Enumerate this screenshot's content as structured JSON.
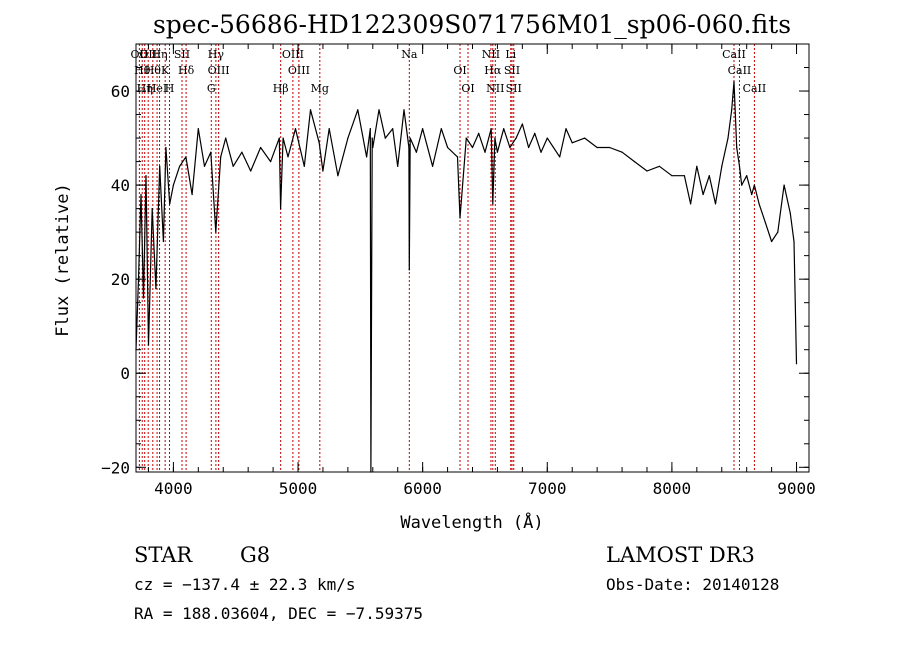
{
  "chart_data": {
    "type": "line",
    "title": "spec-56686-HD122309S071756M01_sp06-060.fits",
    "xlabel": "Wavelength (Å)",
    "ylabel": "Flux (relative)",
    "xlim": [
      3700,
      9100
    ],
    "ylim": [
      -21,
      70
    ],
    "xticks": [
      4000,
      5000,
      6000,
      7000,
      8000,
      9000
    ],
    "yticks": [
      -20,
      0,
      20,
      40,
      60
    ],
    "grid": false,
    "series": [
      {
        "name": "flux",
        "x": [
          3700,
          3720,
          3740,
          3760,
          3780,
          3800,
          3830,
          3860,
          3890,
          3920,
          3940,
          3970,
          4000,
          4050,
          4100,
          4150,
          4200,
          4250,
          4300,
          4340,
          4380,
          4420,
          4480,
          4550,
          4620,
          4700,
          4780,
          4850,
          4860,
          4880,
          4920,
          4980,
          5050,
          5100,
          5170,
          5200,
          5250,
          5320,
          5400,
          5480,
          5550,
          5580,
          5585,
          5595,
          5600,
          5650,
          5700,
          5760,
          5800,
          5850,
          5890,
          5893,
          5900,
          5950,
          6000,
          6080,
          6150,
          6200,
          6280,
          6300,
          6350,
          6400,
          6450,
          6500,
          6550,
          6563,
          6580,
          6600,
          6650,
          6700,
          6750,
          6800,
          6850,
          6900,
          6950,
          7000,
          7050,
          7100,
          7150,
          7200,
          7300,
          7400,
          7500,
          7600,
          7700,
          7800,
          7900,
          8000,
          8100,
          8150,
          8200,
          8250,
          8300,
          8350,
          8400,
          8450,
          8480,
          8498,
          8520,
          8542,
          8560,
          8600,
          8640,
          8662,
          8700,
          8750,
          8800,
          8850,
          8900,
          8950,
          8980,
          9000
        ],
        "values": [
          5,
          20,
          38,
          16,
          42,
          6,
          35,
          18,
          44,
          28,
          48,
          36,
          40,
          44,
          46,
          38,
          52,
          44,
          47,
          30,
          46,
          50,
          44,
          47,
          43,
          48,
          45,
          50,
          35,
          50,
          46,
          52,
          44,
          56,
          49,
          43,
          52,
          42,
          50,
          56,
          46,
          52,
          -21,
          50,
          48,
          56,
          50,
          52,
          44,
          56,
          48,
          22,
          50,
          47,
          52,
          44,
          52,
          48,
          46,
          33,
          50,
          48,
          51,
          47,
          52,
          36,
          50,
          47,
          52,
          48,
          50,
          53,
          48,
          51,
          47,
          50,
          48,
          46,
          52,
          49,
          50,
          48,
          48,
          47,
          45,
          43,
          44,
          42,
          42,
          36,
          44,
          38,
          42,
          36,
          44,
          50,
          56,
          62,
          48,
          44,
          40,
          42,
          38,
          40,
          36,
          32,
          28,
          30,
          40,
          34,
          28,
          2
        ]
      }
    ],
    "line_markers": [
      {
        "lambda": 3727,
        "label": "OII"
      },
      {
        "lambda": 3750,
        "label": "Hθ"
      },
      {
        "lambda": 3770,
        "label": "Hη"
      },
      {
        "lambda": 3798,
        "label": "OII"
      },
      {
        "lambda": 3835,
        "label": "Hθ"
      },
      {
        "lambda": 3869,
        "label": "HeI"
      },
      {
        "lambda": 3889,
        "label": "Hη"
      },
      {
        "lambda": 3934,
        "label": "K"
      },
      {
        "lambda": 3969,
        "label": "H"
      },
      {
        "lambda": 4069,
        "label": "SII"
      },
      {
        "lambda": 4102,
        "label": "Hδ"
      },
      {
        "lambda": 4304,
        "label": "G"
      },
      {
        "lambda": 4341,
        "label": "Hγ"
      },
      {
        "lambda": 4363,
        "label": "OIII"
      },
      {
        "lambda": 4861,
        "label": "Hβ"
      },
      {
        "lambda": 4959,
        "label": "OIII"
      },
      {
        "lambda": 5007,
        "label": "OIII"
      },
      {
        "lambda": 5175,
        "label": "Mg"
      },
      {
        "lambda": 5893,
        "label": "Na"
      },
      {
        "lambda": 6300,
        "label": "OI"
      },
      {
        "lambda": 6364,
        "label": "OI"
      },
      {
        "lambda": 6548,
        "label": "NII"
      },
      {
        "lambda": 6563,
        "label": "Hα"
      },
      {
        "lambda": 6583,
        "label": "NII"
      },
      {
        "lambda": 6707,
        "label": "Li"
      },
      {
        "lambda": 6717,
        "label": "SII"
      },
      {
        "lambda": 6731,
        "label": "SII"
      },
      {
        "lambda": 8498,
        "label": "CaII"
      },
      {
        "lambda": 8542,
        "label": "CaII"
      },
      {
        "lambda": 8662,
        "label": "CaII"
      }
    ]
  },
  "info": {
    "object_class": "STAR",
    "subclass": "G8",
    "survey": "LAMOST DR3",
    "cz": "cz = −137.4 ± 22.3 km/s",
    "obs_date": "Obs-Date: 20140128",
    "coords": "RA = 188.03604, DEC =  −7.59375"
  },
  "colors": {
    "line_marker": "#c00000",
    "spectrum": "#000000"
  }
}
